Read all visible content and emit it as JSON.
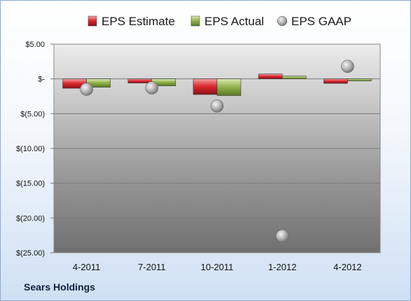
{
  "chart_data": {
    "type": "bar",
    "categories": [
      "4-2011",
      "7-2011",
      "10-2011",
      "1-2012",
      "4-2012"
    ],
    "series": [
      {
        "name": "EPS Estimate",
        "kind": "bar",
        "color": "#d9262c",
        "values": [
          -1.35,
          -0.6,
          -2.25,
          0.7,
          -0.65
        ]
      },
      {
        "name": "EPS Actual",
        "kind": "bar",
        "color": "#8fb04a",
        "values": [
          -1.2,
          -1.0,
          -2.4,
          0.4,
          -0.3
        ]
      },
      {
        "name": "EPS GAAP",
        "kind": "marker",
        "color": "#a8a8a8",
        "values": [
          -1.5,
          -1.3,
          -3.9,
          -22.6,
          1.8
        ]
      }
    ],
    "y_ticks": [
      {
        "value": 5,
        "label": "$5.00"
      },
      {
        "value": 0,
        "label": "$-"
      },
      {
        "value": -5,
        "label": "$(5.00)"
      },
      {
        "value": -10,
        "label": "$(10.00)"
      },
      {
        "value": -15,
        "label": "$(15.00)"
      },
      {
        "value": -20,
        "label": "$(20.00)"
      },
      {
        "value": -25,
        "label": "$(25.00)"
      }
    ],
    "ylim": [
      -25,
      5
    ],
    "grid": true,
    "legend_position": "top",
    "title": "",
    "xlabel": "",
    "ylabel": ""
  },
  "footer": {
    "company": "Sears Holdings"
  }
}
